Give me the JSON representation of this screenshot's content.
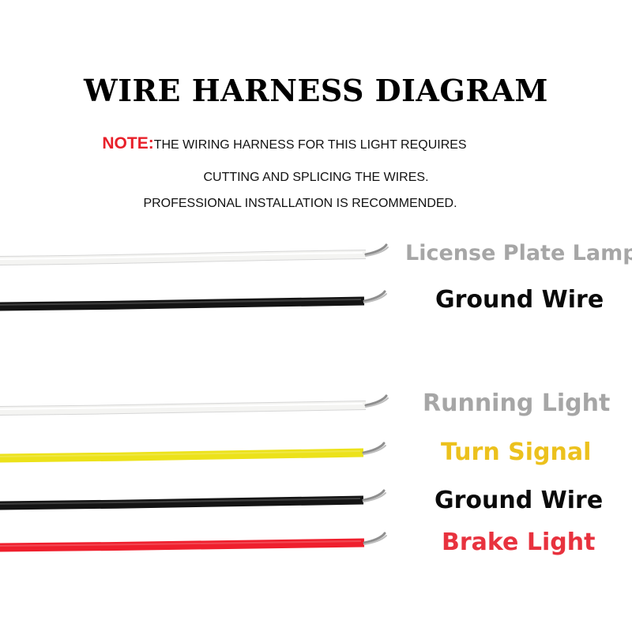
{
  "title": "WIRE HARNESS DIAGRAM",
  "note": {
    "label": "NOTE:",
    "line1": "THE WIRING HARNESS FOR THIS LIGHT REQUIRES",
    "line2": "CUTTING AND SPLICING THE WIRES.",
    "line3": "PROFESSIONAL INSTALLATION IS RECOMMENDED."
  },
  "wires": [
    {
      "label": "License Plate Lamp",
      "wire_color": "#f4f4f2",
      "label_color": "#a6a6a6"
    },
    {
      "label": "Ground Wire",
      "wire_color": "#141414",
      "label_color": "#0a0a0a"
    },
    {
      "label": "Running Light",
      "wire_color": "#f4f4f2",
      "label_color": "#a6a6a6"
    },
    {
      "label": "Turn Signal",
      "wire_color": "#ece21a",
      "label_color": "#ecc11d"
    },
    {
      "label": "Ground Wire",
      "wire_color": "#141414",
      "label_color": "#0a0a0a"
    },
    {
      "label": "Brake Light",
      "wire_color": "#ef1f2d",
      "label_color": "#e8323e"
    }
  ]
}
